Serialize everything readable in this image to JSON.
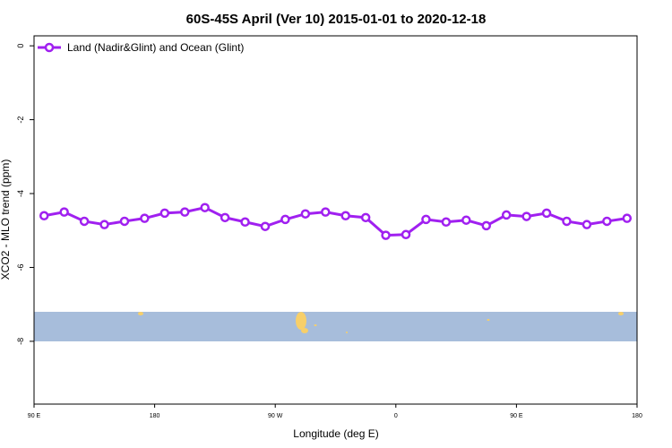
{
  "chart_data": {
    "type": "line",
    "title": "60S-45S April (Ver 10)   2015-01-01 to 2020-12-18",
    "xlabel": "Longitude (deg E)",
    "ylabel": "XCO2 - MLO trend (ppm)",
    "x": [
      97.5,
      112.5,
      127.5,
      142.5,
      157.5,
      172.5,
      187.5,
      202.5,
      217.5,
      232.5,
      247.5,
      262.5,
      277.5,
      292.5,
      307.5,
      322.5,
      337.5,
      352.5,
      367.5,
      382.5,
      397.5,
      412.5,
      427.5,
      442.5,
      457.5,
      472.5,
      487.5,
      502.5,
      517.5,
      532.5
    ],
    "series": [
      {
        "name": "Land (Nadir&Glint) and Ocean (Glint)",
        "color": "#a020f0",
        "values": [
          -4.6,
          -4.5,
          -4.75,
          -4.84,
          -4.75,
          -4.67,
          -4.53,
          -4.5,
          -4.38,
          -4.65,
          -4.77,
          -4.89,
          -4.7,
          -4.55,
          -4.5,
          -4.6,
          -4.65,
          -5.13,
          -5.11,
          -4.7,
          -4.77,
          -4.72,
          -4.87,
          -4.58,
          -4.62,
          -4.53,
          -4.75,
          -4.84,
          -4.75,
          -4.67
        ]
      }
    ],
    "xlim": [
      90,
      540
    ],
    "xticks": [
      {
        "value": 90,
        "label": "90 E"
      },
      180,
      {
        "value": 270,
        "label": "90 W"
      },
      {
        "value": 360,
        "label": "0"
      },
      {
        "value": 450,
        "label": "90 E"
      },
      {
        "value": 540,
        "label": "180"
      }
    ],
    "ylim": [
      -9.7,
      0.27
    ],
    "yticks": [
      0,
      -2,
      -4,
      -6,
      -8
    ],
    "legend": "top-left"
  }
}
